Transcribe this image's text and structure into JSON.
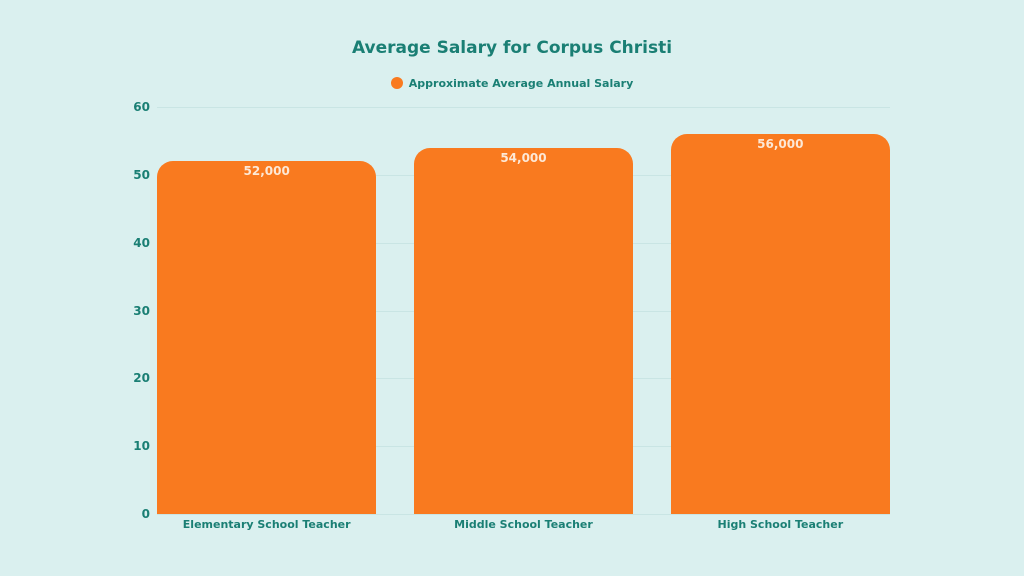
{
  "chart_data": {
    "type": "bar",
    "title": "Average Salary for Corpus Christi",
    "legend": [
      "Approximate Average Annual Salary"
    ],
    "legend_position": "top",
    "categories": [
      "Elementary School Teacher",
      "Middle School Teacher",
      "High School Teacher"
    ],
    "series": [
      {
        "name": "Approximate Average Annual Salary",
        "values": [
          52,
          54,
          56
        ],
        "data_labels": [
          "52,000",
          "54,000",
          "56,000"
        ],
        "color": "#f97a1f"
      }
    ],
    "xlabel": "",
    "ylabel": "",
    "ylim": [
      0,
      60
    ],
    "yticks": [
      "0",
      "10",
      "20",
      "30",
      "40",
      "50",
      "60"
    ],
    "grid": true
  },
  "colors": {
    "background": "#daf0ef",
    "bar": "#f97a1f",
    "text": "#1a7f74"
  }
}
